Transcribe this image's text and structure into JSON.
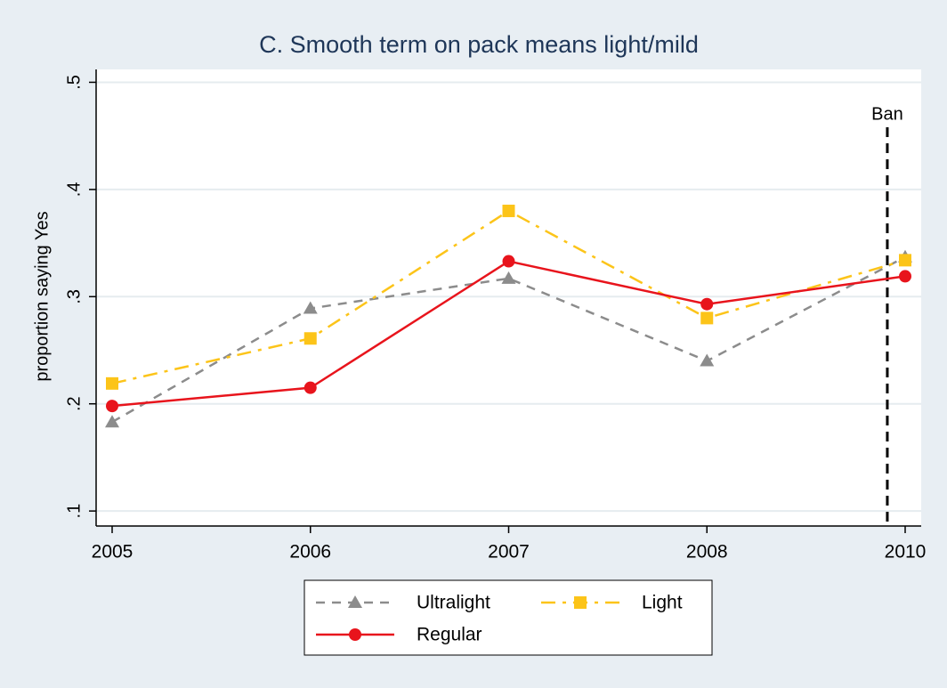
{
  "chart_data": {
    "type": "line",
    "title": "C. Smooth term on pack means light/mild",
    "y_label": "proportion saying Yes",
    "categories": [
      "2005",
      "2006",
      "2007",
      "2008",
      "2010"
    ],
    "series": [
      {
        "name": "Ultralight",
        "color": "#8c8c8c",
        "marker": "triangle",
        "line_style": "dashed",
        "values": [
          0.183,
          0.289,
          0.317,
          0.24,
          0.337
        ]
      },
      {
        "name": "Light",
        "color": "#fcc419",
        "marker": "square",
        "line_style": "dash-dot",
        "values": [
          0.219,
          0.261,
          0.38,
          0.28,
          0.334
        ]
      },
      {
        "name": "Regular",
        "color": "#e8141c",
        "marker": "circle",
        "line_style": "solid",
        "values": [
          0.198,
          0.215,
          0.333,
          0.293,
          0.319
        ]
      }
    ],
    "ylim": [
      0.086,
      0.512
    ],
    "yticks": [
      {
        "value": 0.1,
        "label": ".1"
      },
      {
        "value": 0.2,
        "label": ".2"
      },
      {
        "value": 0.3,
        "label": ".3"
      },
      {
        "value": 0.4,
        "label": ".4"
      },
      {
        "value": 0.5,
        "label": ".5"
      }
    ],
    "grid": true,
    "annotations": [
      {
        "text": "Ban",
        "x": 3.91
      }
    ]
  }
}
